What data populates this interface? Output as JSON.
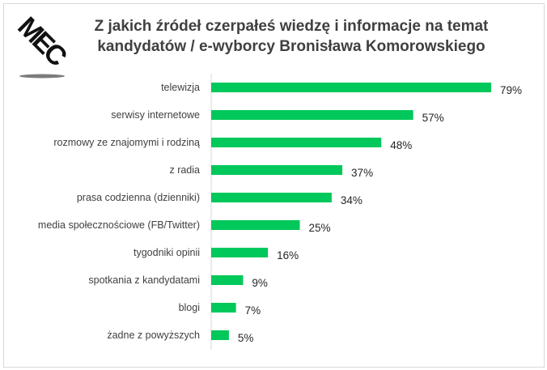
{
  "logo_text": "MEC",
  "chart_data": {
    "type": "bar",
    "orientation": "horizontal",
    "title": "Z jakich źródeł czerpałeś wiedzę i informacje na temat kandydatów / e-wyborcy Bronisława Komorowskiego",
    "title_lines": [
      "Z jakich źródeł czerpałeś wiedzę i informacje na temat",
      "kandydatów / e-wyborcy Bronisława Komorowskiego"
    ],
    "categories": [
      "telewizja",
      "serwisy internetowe",
      "rozmowy ze znajomymi i rodziną",
      "z radia",
      "prasa codzienna (dzienniki)",
      "media społecznościowe (FB/Twitter)",
      "tygodniki opinii",
      "spotkania z kandydatami",
      "blogi",
      "żadne z powyższych"
    ],
    "values": [
      79,
      57,
      48,
      37,
      34,
      25,
      16,
      9,
      7,
      5
    ],
    "value_labels": [
      "79%",
      "57%",
      "48%",
      "37%",
      "34%",
      "25%",
      "16%",
      "9%",
      "7%",
      "5%"
    ],
    "unit": "%",
    "xlim": [
      0,
      100
    ],
    "grid": false,
    "bar_color": "#00c85a",
    "xlabel": "",
    "ylabel": ""
  }
}
